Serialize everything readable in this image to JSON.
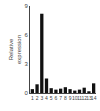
{
  "chart_data": {
    "type": "bar",
    "categories": [
      "1",
      "2",
      "3",
      "4",
      "5",
      "6",
      "7",
      "8",
      "9",
      "10",
      "11",
      "12",
      "13",
      "14"
    ],
    "values": [
      0.4,
      0.9,
      8.2,
      1.5,
      0.5,
      0.35,
      0.45,
      0.6,
      0.4,
      0.25,
      0.35,
      0.55,
      0.18,
      1.0
    ],
    "color": "#111111",
    "ylabel": "Relative\nexpression",
    "ylim": [
      0,
      9
    ],
    "yticks": [
      0,
      3,
      6,
      9
    ],
    "grid": false
  }
}
